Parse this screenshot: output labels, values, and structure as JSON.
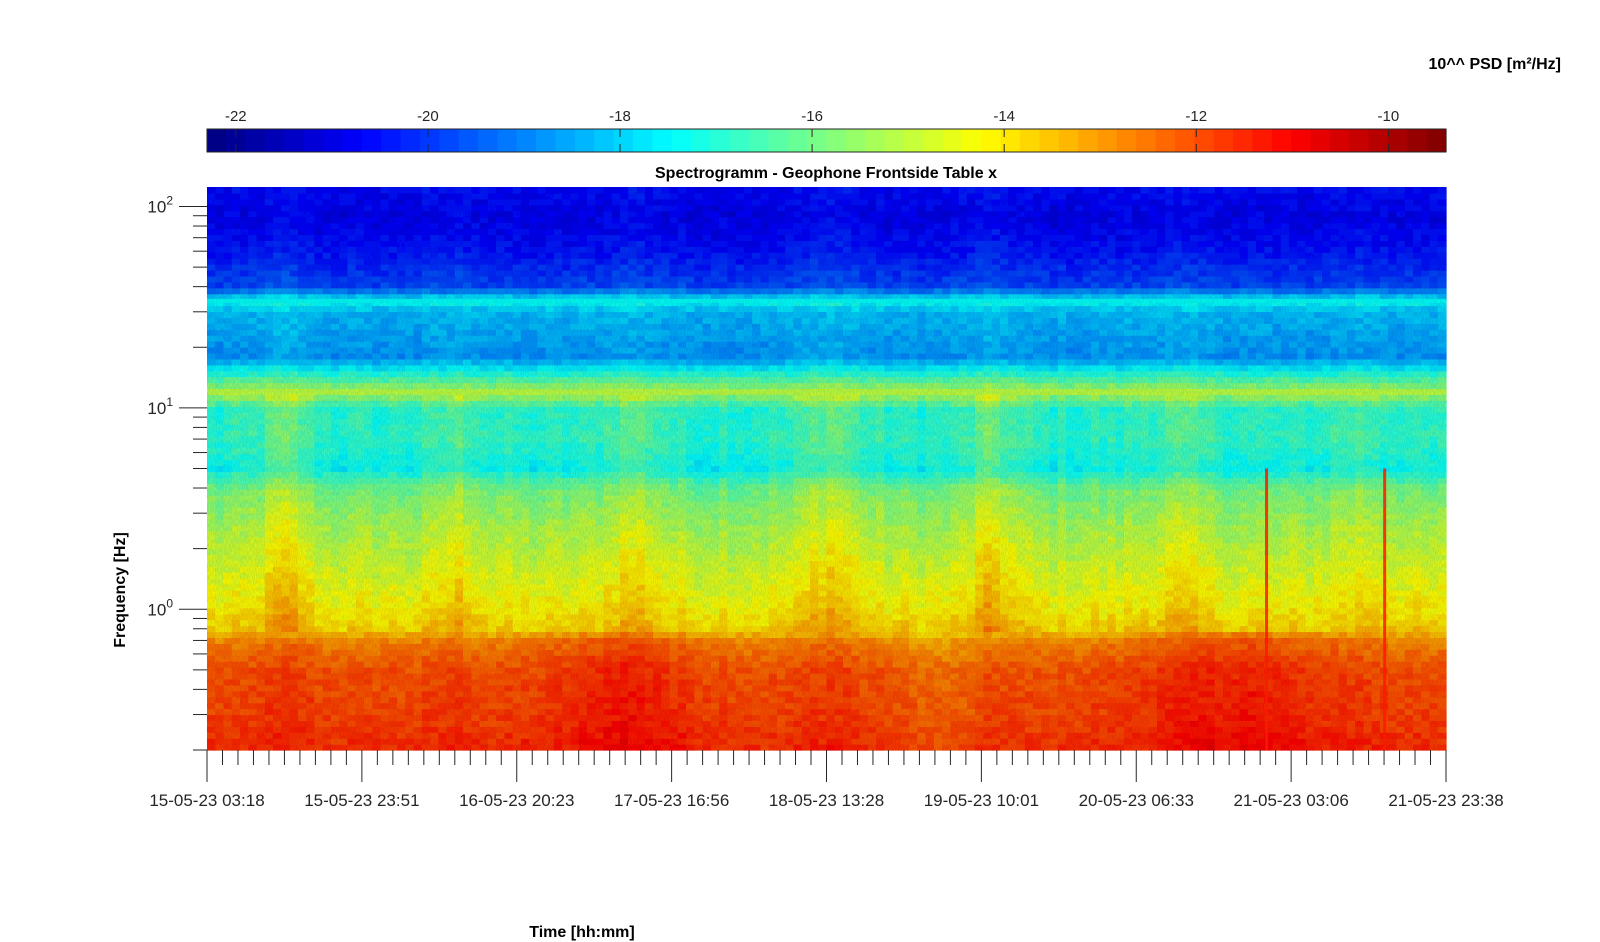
{
  "chart_data": {
    "type": "heatmap",
    "title": "Spectrogramm - Geophone Frontside Table x",
    "xlabel": "Time [hh:mm]",
    "ylabel": "Frequency [Hz]",
    "colorbar_label": "10^^ PSD [m²/Hz]",
    "colormap": "jet",
    "clim": [
      -22.3,
      -9.4
    ],
    "colorbar_ticks": [
      "-22",
      "-20",
      "-18",
      "-16",
      "-14",
      "-12",
      "-10"
    ],
    "colorbar_tick_values": [
      -22,
      -20,
      -18,
      -16,
      -14,
      -12,
      -10
    ],
    "y_scale": "log",
    "ylim": [
      0.2,
      125
    ],
    "y_ticks": [
      {
        "base": "10",
        "exp": "2",
        "value": 100
      },
      {
        "base": "10",
        "exp": "1",
        "value": 10
      },
      {
        "base": "10",
        "exp": "0",
        "value": 1
      }
    ],
    "x_range": [
      "15-05-23 03:18",
      "21-05-23 23:38"
    ],
    "x_ticks": [
      "15-05-23 03:18",
      "15-05-23 23:51",
      "16-05-23 20:23",
      "17-05-23 16:56",
      "18-05-23 13:28",
      "19-05-23 10:01",
      "20-05-23 06:33",
      "21-05-23 03:06",
      "21-05-23 23:38"
    ],
    "x_minor_ticks_per_interval": 10,
    "psd_profile": [
      {
        "freq": 0.2,
        "log_psd": -11.6
      },
      {
        "freq": 0.3,
        "log_psd": -11.9
      },
      {
        "freq": 0.5,
        "log_psd": -12.1
      },
      {
        "freq": 0.7,
        "log_psd": -12.8
      },
      {
        "freq": 0.8,
        "log_psd": -13.8
      },
      {
        "freq": 1.0,
        "log_psd": -14.2
      },
      {
        "freq": 1.5,
        "log_psd": -14.7
      },
      {
        "freq": 2.5,
        "log_psd": -15.3
      },
      {
        "freq": 4.0,
        "log_psd": -16.0
      },
      {
        "freq": 5.0,
        "log_psd": -17.4
      },
      {
        "freq": 7.0,
        "log_psd": -16.9
      },
      {
        "freq": 10,
        "log_psd": -17.0
      },
      {
        "freq": 12,
        "log_psd": -15.1
      },
      {
        "freq": 15,
        "log_psd": -17.2
      },
      {
        "freq": 18,
        "log_psd": -18.8
      },
      {
        "freq": 30,
        "log_psd": -18.3
      },
      {
        "freq": 34,
        "log_psd": -17.4
      },
      {
        "freq": 40,
        "log_psd": -19.8
      },
      {
        "freq": 60,
        "log_psd": -20.5
      },
      {
        "freq": 90,
        "log_psd": -20.9
      },
      {
        "freq": 125,
        "log_psd": -20.6
      }
    ],
    "line_features": [
      {
        "freq": 12,
        "log_psd": -15.1,
        "note": "persistent narrowband line"
      },
      {
        "freq": 34,
        "log_psd": -17.4,
        "note": "persistent narrowband line"
      }
    ],
    "transient_events": [
      {
        "time": "20-05-23 23:50",
        "log_psd": -11.3
      },
      {
        "time": "21-05-23 15:30",
        "log_psd": -11.3
      }
    ]
  }
}
